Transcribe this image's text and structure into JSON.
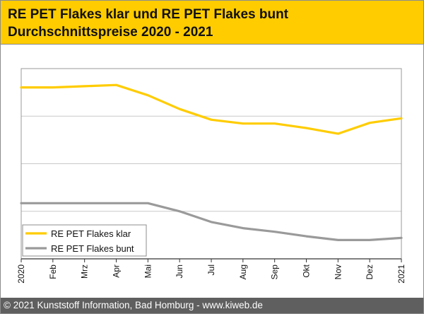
{
  "header": {
    "title_line1": "RE PET Flakes klar und RE PET Flakes bunt",
    "title_line2": "Durchschnittspreise 2020 - 2021"
  },
  "footer": {
    "text": "© 2021 Kunststoff Information, Bad Homburg - www.kiweb.de"
  },
  "colors": {
    "header_bg": "#ffcc00",
    "footer_bg": "#5f5f5f",
    "series_klar": "#ffcc00",
    "series_bunt": "#9a9a9a",
    "grid": "#c8c8c8"
  },
  "chart_data": {
    "type": "line",
    "title": "",
    "xlabel": "",
    "ylabel": "",
    "categories": [
      "2020",
      "Feb",
      "Mrz",
      "Apr",
      "Mai",
      "Jun",
      "Jul",
      "Aug",
      "Sep",
      "Okt",
      "Nov",
      "Dez",
      "2021"
    ],
    "ylim": [
      0,
      8
    ],
    "y_tick_labels_shown": false,
    "grid": "horizontal",
    "legend_position": "bottom-left",
    "series": [
      {
        "name": "RE PET Flakes klar",
        "color": "#ffcc00",
        "values": [
          7.21,
          7.21,
          7.26,
          7.31,
          6.88,
          6.3,
          5.85,
          5.69,
          5.69,
          5.5,
          5.26,
          5.72,
          5.91
        ]
      },
      {
        "name": "RE PET Flakes bunt",
        "color": "#9a9a9a",
        "values": [
          2.34,
          2.34,
          2.34,
          2.34,
          2.34,
          2.0,
          1.55,
          1.29,
          1.14,
          0.95,
          0.79,
          0.79,
          0.88
        ]
      }
    ]
  }
}
